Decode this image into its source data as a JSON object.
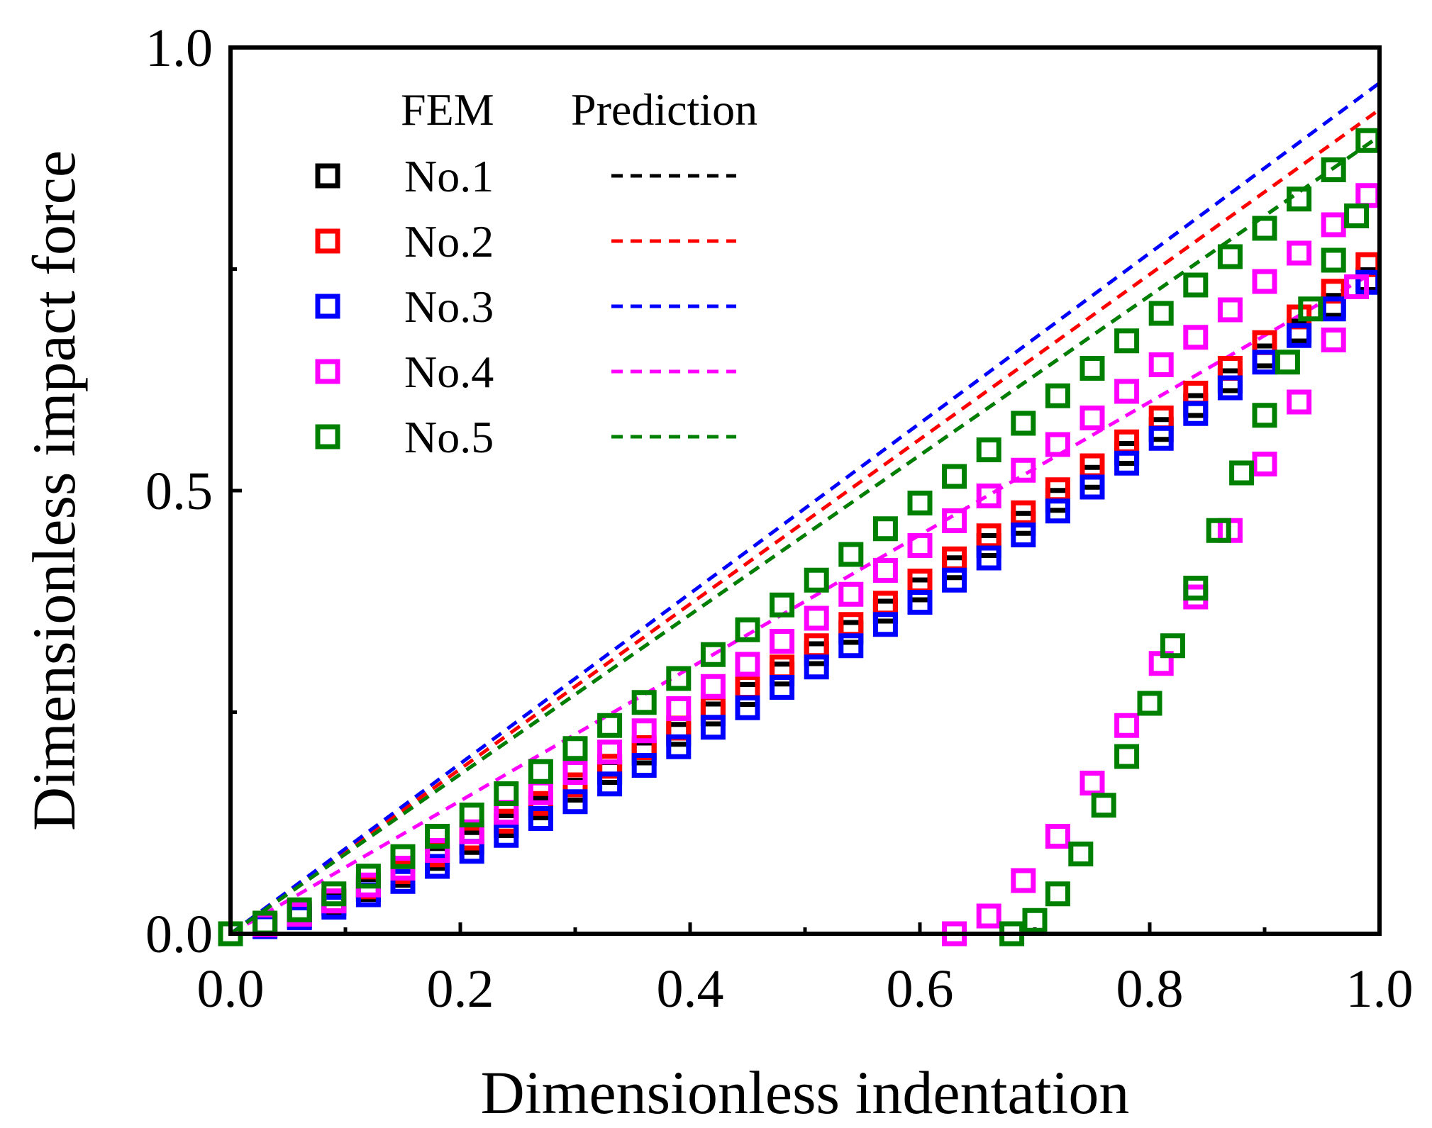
{
  "chart_data": {
    "type": "scatter",
    "xlabel": "Dimensionless indentation",
    "ylabel": "Dimensionless impact force",
    "xlim": [
      0.0,
      1.0
    ],
    "ylim": [
      0.0,
      1.0
    ],
    "xticks": [
      0.0,
      0.2,
      0.4,
      0.6,
      0.8,
      1.0
    ],
    "xtick_labels": [
      "0.0",
      "0.2",
      "0.4",
      "0.6",
      "0.8",
      "1.0"
    ],
    "yticks": [
      0.0,
      0.5,
      1.0
    ],
    "ytick_labels": [
      "0.0",
      "0.5",
      "1.0"
    ],
    "yticks_minor": [
      0.25,
      0.75
    ],
    "grid": false,
    "legend": {
      "position": "top-left",
      "fem_header": "FEM",
      "prediction_header": "Prediction"
    },
    "series": [
      {
        "name": "No.1",
        "color": "#000000",
        "fem": {
          "loading_x": [
            0.0,
            0.03,
            0.06,
            0.09,
            0.12,
            0.15,
            0.18,
            0.21,
            0.24,
            0.27,
            0.3,
            0.33,
            0.36,
            0.39,
            0.42,
            0.45,
            0.48,
            0.51,
            0.54,
            0.57,
            0.6,
            0.63,
            0.66,
            0.69,
            0.72,
            0.75,
            0.78,
            0.81,
            0.84,
            0.87,
            0.9,
            0.93,
            0.96,
            0.99
          ],
          "loading_y": [
            0.0,
            0.01,
            0.02,
            0.034,
            0.05,
            0.066,
            0.085,
            0.103,
            0.122,
            0.142,
            0.162,
            0.182,
            0.204,
            0.225,
            0.248,
            0.27,
            0.293,
            0.316,
            0.34,
            0.364,
            0.388,
            0.413,
            0.438,
            0.463,
            0.489,
            0.515,
            0.542,
            0.569,
            0.596,
            0.624,
            0.652,
            0.68,
            0.709,
            0.738
          ],
          "unloading_x": [],
          "unloading_y": []
        },
        "prediction": {
          "x": [
            0.0,
            0.1,
            0.2,
            0.3,
            0.4,
            0.5,
            0.6,
            0.7,
            0.8,
            0.9,
            1.0
          ],
          "y": [
            0.0,
            0.09,
            0.18,
            0.27,
            0.36,
            0.45,
            0.54,
            0.63,
            0.72,
            0.81,
            0.9
          ]
        }
      },
      {
        "name": "No.2",
        "color": "#ff0000",
        "fem": {
          "loading_x": [
            0.0,
            0.03,
            0.06,
            0.09,
            0.12,
            0.15,
            0.18,
            0.21,
            0.24,
            0.27,
            0.3,
            0.33,
            0.36,
            0.39,
            0.42,
            0.45,
            0.48,
            0.51,
            0.54,
            0.57,
            0.6,
            0.63,
            0.66,
            0.69,
            0.72,
            0.75,
            0.78,
            0.81,
            0.84,
            0.87,
            0.9,
            0.93,
            0.96,
            0.99
          ],
          "loading_y": [
            0.0,
            0.011,
            0.023,
            0.037,
            0.053,
            0.07,
            0.089,
            0.108,
            0.127,
            0.147,
            0.168,
            0.189,
            0.21,
            0.232,
            0.255,
            0.278,
            0.301,
            0.325,
            0.349,
            0.373,
            0.398,
            0.423,
            0.449,
            0.475,
            0.501,
            0.528,
            0.555,
            0.582,
            0.61,
            0.638,
            0.667,
            0.696,
            0.725,
            0.755
          ],
          "unloading_x": [],
          "unloading_y": []
        },
        "prediction": {
          "x": [
            0.0,
            0.1,
            0.2,
            0.3,
            0.4,
            0.5,
            0.6,
            0.7,
            0.8,
            0.9,
            1.0
          ],
          "y": [
            0.0,
            0.093,
            0.186,
            0.279,
            0.372,
            0.465,
            0.558,
            0.651,
            0.744,
            0.837,
            0.93
          ]
        }
      },
      {
        "name": "No.3",
        "color": "#0000ff",
        "fem": {
          "loading_x": [
            0.0,
            0.03,
            0.06,
            0.09,
            0.12,
            0.15,
            0.18,
            0.21,
            0.24,
            0.27,
            0.3,
            0.33,
            0.36,
            0.39,
            0.42,
            0.45,
            0.48,
            0.51,
            0.54,
            0.57,
            0.6,
            0.63,
            0.66,
            0.69,
            0.72,
            0.75,
            0.78,
            0.81,
            0.84,
            0.87,
            0.9,
            0.93,
            0.96,
            0.99
          ],
          "loading_y": [
            0.0,
            0.008,
            0.018,
            0.03,
            0.044,
            0.059,
            0.076,
            0.093,
            0.111,
            0.13,
            0.149,
            0.169,
            0.19,
            0.211,
            0.233,
            0.255,
            0.278,
            0.301,
            0.325,
            0.349,
            0.374,
            0.399,
            0.424,
            0.45,
            0.477,
            0.504,
            0.531,
            0.559,
            0.587,
            0.616,
            0.645,
            0.675,
            0.705,
            0.735
          ],
          "unloading_x": [],
          "unloading_y": []
        },
        "prediction": {
          "x": [
            0.0,
            0.1,
            0.2,
            0.3,
            0.4,
            0.5,
            0.6,
            0.7,
            0.8,
            0.9,
            1.0
          ],
          "y": [
            0.0,
            0.096,
            0.192,
            0.288,
            0.384,
            0.48,
            0.576,
            0.672,
            0.768,
            0.864,
            0.96
          ]
        }
      },
      {
        "name": "No.4",
        "color": "#ff00ff",
        "fem": {
          "loading_x": [
            0.0,
            0.03,
            0.06,
            0.09,
            0.12,
            0.15,
            0.18,
            0.21,
            0.24,
            0.27,
            0.3,
            0.33,
            0.36,
            0.39,
            0.42,
            0.45,
            0.48,
            0.51,
            0.54,
            0.57,
            0.6,
            0.63,
            0.66,
            0.69,
            0.72,
            0.75,
            0.78,
            0.81,
            0.84,
            0.87,
            0.9,
            0.93,
            0.96,
            0.99
          ],
          "loading_y": [
            0.0,
            0.01,
            0.022,
            0.037,
            0.055,
            0.074,
            0.094,
            0.115,
            0.137,
            0.159,
            0.182,
            0.205,
            0.229,
            0.254,
            0.279,
            0.304,
            0.33,
            0.356,
            0.383,
            0.41,
            0.438,
            0.466,
            0.494,
            0.523,
            0.552,
            0.582,
            0.612,
            0.642,
            0.673,
            0.704,
            0.736,
            0.768,
            0.8,
            0.833
          ],
          "unloading_x": [
            0.63,
            0.66,
            0.69,
            0.72,
            0.75,
            0.78,
            0.81,
            0.84,
            0.87,
            0.9,
            0.93,
            0.96,
            0.98
          ],
          "unloading_y": [
            0.0,
            0.02,
            0.06,
            0.11,
            0.17,
            0.235,
            0.305,
            0.38,
            0.455,
            0.53,
            0.6,
            0.67,
            0.73
          ]
        },
        "prediction": {
          "x": [
            0.0,
            0.1,
            0.2,
            0.3,
            0.4,
            0.5,
            0.6,
            0.7,
            0.8,
            0.9,
            1.0
          ],
          "y": [
            0.0,
            0.075,
            0.15,
            0.225,
            0.3,
            0.375,
            0.45,
            0.525,
            0.6,
            0.675,
            0.75
          ]
        }
      },
      {
        "name": "No.5",
        "color": "#008000",
        "fem": {
          "loading_x": [
            0.0,
            0.03,
            0.06,
            0.09,
            0.12,
            0.15,
            0.18,
            0.21,
            0.24,
            0.27,
            0.3,
            0.33,
            0.36,
            0.39,
            0.42,
            0.45,
            0.48,
            0.51,
            0.54,
            0.57,
            0.6,
            0.63,
            0.66,
            0.69,
            0.72,
            0.75,
            0.78,
            0.81,
            0.84,
            0.87,
            0.9,
            0.93,
            0.96,
            0.99
          ],
          "loading_y": [
            0.0,
            0.012,
            0.027,
            0.045,
            0.065,
            0.087,
            0.11,
            0.134,
            0.158,
            0.183,
            0.209,
            0.235,
            0.261,
            0.288,
            0.315,
            0.343,
            0.371,
            0.399,
            0.428,
            0.457,
            0.486,
            0.516,
            0.546,
            0.576,
            0.607,
            0.638,
            0.669,
            0.7,
            0.732,
            0.764,
            0.796,
            0.829,
            0.862,
            0.895
          ],
          "unloading_x": [
            0.68,
            0.7,
            0.72,
            0.74,
            0.76,
            0.78,
            0.8,
            0.82,
            0.84,
            0.86,
            0.88,
            0.9,
            0.92,
            0.94,
            0.96,
            0.98
          ],
          "unloading_y": [
            0.0,
            0.015,
            0.045,
            0.09,
            0.145,
            0.2,
            0.26,
            0.325,
            0.39,
            0.455,
            0.52,
            0.585,
            0.645,
            0.705,
            0.76,
            0.81
          ]
        },
        "prediction": {
          "x": [
            0.0,
            0.1,
            0.2,
            0.3,
            0.4,
            0.5,
            0.6,
            0.7,
            0.8,
            0.9,
            1.0
          ],
          "y": [
            0.0,
            0.09,
            0.18,
            0.27,
            0.36,
            0.45,
            0.54,
            0.63,
            0.72,
            0.81,
            0.9
          ]
        }
      }
    ]
  }
}
